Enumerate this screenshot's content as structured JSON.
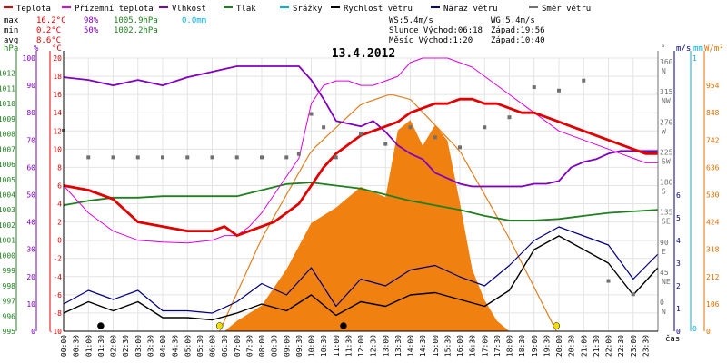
{
  "legend": [
    {
      "label": "Teplota",
      "color": "#e00000"
    },
    {
      "label": "Přízemní teplota",
      "color": "#e000e0"
    },
    {
      "label": "Vlhkost",
      "color": "#8000c0"
    },
    {
      "label": "Tlak",
      "color": "#208020"
    },
    {
      "label": "Srážky",
      "color": "#00b0e0"
    },
    {
      "label": "Rychlost větru",
      "color": "#000000"
    },
    {
      "label": "Náraz větru",
      "color": "#000080"
    },
    {
      "label": "Směr větru",
      "color": "#707070"
    }
  ],
  "stats": {
    "max": {
      "label": "max",
      "temp": "16.2°C",
      "hum": "98%",
      "press": "1005.9hPa",
      "rain": "0.0mm"
    },
    "min": {
      "label": "min",
      "temp": "0.2°C",
      "hum": "50%",
      "press": "1002.2hPa"
    },
    "avg": {
      "label": "avg",
      "temp": "8.6°C"
    }
  },
  "info": {
    "ws": "WS:5.4m/s",
    "wg": "WG:5.4m/s",
    "sun": "Slunce Východ:06:18",
    "sun_set": "Západ:19:56",
    "moon": "Měsíc Východ:1:20",
    "moon_set": "Západ:10:40"
  },
  "axis_units": {
    "hpa": "hPa",
    "pct": "%",
    "degc": "°C",
    "deg": "°",
    "ms": "m/s",
    "mm": "mm",
    "wm2": "W/m²",
    "time": "čas"
  },
  "chart_data": {
    "type": "line",
    "title": "13.4.2012",
    "x_ticks": [
      "00:00",
      "00:30",
      "01:00",
      "01:30",
      "02:00",
      "02:30",
      "03:00",
      "03:30",
      "04:00",
      "04:30",
      "05:00",
      "05:30",
      "06:00",
      "06:30",
      "07:00",
      "07:30",
      "08:00",
      "08:30",
      "09:00",
      "09:30",
      "10:00",
      "10:30",
      "11:00",
      "11:30",
      "12:00",
      "12:30",
      "13:00",
      "13:30",
      "14:00",
      "14:30",
      "15:00",
      "15:30",
      "16:00",
      "16:30",
      "17:00",
      "17:30",
      "18:00",
      "18:30",
      "19:00",
      "19:30",
      "20:00",
      "20:30",
      "21:00",
      "21:30",
      "22:00",
      "22:30",
      "23:00",
      "23:30"
    ],
    "xlim": [
      0,
      24
    ],
    "axes": {
      "hpa": {
        "range": [
          995,
          1013
        ],
        "ticks": [
          995,
          996,
          997,
          998,
          999,
          1000,
          1001,
          1002,
          1003,
          1004,
          1005,
          1006,
          1007,
          1008,
          1009,
          1010,
          1011,
          1012
        ]
      },
      "pct": {
        "range": [
          0,
          100
        ],
        "ticks": [
          0,
          10,
          20,
          30,
          40,
          50,
          60,
          70,
          80,
          90,
          100
        ]
      },
      "degc": {
        "range": [
          -10,
          20
        ],
        "ticks": [
          -10,
          -8,
          -6,
          -4,
          -2,
          0,
          2,
          4,
          6,
          8,
          10,
          12,
          14,
          16,
          18,
          20
        ]
      },
      "deg": {
        "ticks": [
          {
            "v": 0,
            "label": "0 N"
          },
          {
            "v": 45,
            "label": "45 NE"
          },
          {
            "v": 90,
            "label": "90 E"
          },
          {
            "v": 135,
            "label": "135 SE"
          },
          {
            "v": 180,
            "label": "180 S"
          },
          {
            "v": 225,
            "label": "225 SW"
          },
          {
            "v": 270,
            "label": "270 W"
          },
          {
            "v": 315,
            "label": "315 NW"
          },
          {
            "v": 360,
            "label": "360 N"
          }
        ]
      },
      "ms": {
        "ticks": [
          0,
          1,
          2,
          3,
          4,
          5,
          6
        ]
      },
      "mm": {
        "ticks": [
          0,
          1
        ]
      },
      "wm2": {
        "range": [
          0,
          1060
        ],
        "ticks": [
          0,
          106,
          212,
          318,
          424,
          530,
          636,
          742,
          848,
          954
        ]
      }
    },
    "series": [
      {
        "name": "Teplota",
        "axis": "degc",
        "x": [
          0,
          1,
          2,
          3,
          4,
          5,
          6,
          6.5,
          7,
          7.5,
          8,
          8.5,
          9,
          9.5,
          10,
          10.5,
          11,
          11.5,
          12,
          12.5,
          13,
          13.5,
          14,
          14.5,
          15,
          15.5,
          16,
          16.5,
          17,
          17.5,
          18,
          18.5,
          19,
          19.5,
          20,
          20.5,
          21,
          21.5,
          22,
          22.5,
          23,
          23.5,
          24
        ],
        "y": [
          6,
          5.5,
          4.5,
          2,
          1.5,
          1,
          1,
          1.5,
          0.5,
          1,
          1.5,
          2,
          3,
          4,
          6,
          8,
          9.5,
          10.5,
          11.5,
          12,
          12.5,
          13,
          14,
          14.5,
          15,
          15,
          15.5,
          15.5,
          15,
          15,
          14.5,
          14,
          14,
          13.5,
          13,
          12.5,
          12,
          11.5,
          11,
          10.5,
          10,
          9.5,
          9.5
        ]
      },
      {
        "name": "Přízemní teplota",
        "axis": "degc",
        "x": [
          0,
          1,
          2,
          3,
          4,
          5,
          6,
          6.5,
          7,
          7.5,
          8,
          8.5,
          9,
          9.5,
          10,
          10.5,
          11,
          11.5,
          12,
          12.5,
          13,
          13.5,
          14,
          14.5,
          15,
          15.5,
          16,
          16.5,
          17,
          17.5,
          18,
          18.5,
          19,
          19.5,
          20,
          20.5,
          21,
          21.5,
          22,
          22.5,
          23,
          23.5,
          24
        ],
        "y": [
          6,
          3,
          1,
          0,
          -0.2,
          -0.3,
          0,
          0.5,
          0.5,
          1.5,
          3,
          5,
          7,
          9,
          15,
          17,
          17.5,
          17.5,
          17,
          17,
          17.5,
          18,
          19.5,
          20,
          20,
          20,
          19.5,
          19,
          18,
          17,
          16,
          15,
          14,
          13,
          12,
          11.5,
          11,
          10.5,
          10,
          9.5,
          9,
          8.5,
          8.5
        ]
      },
      {
        "name": "Vlhkost",
        "axis": "pct",
        "x": [
          0,
          1,
          2,
          3,
          4,
          5,
          6,
          6.5,
          7,
          7.5,
          8,
          8.5,
          9,
          9.5,
          10,
          10.5,
          11,
          11.5,
          12,
          12.5,
          13,
          13.5,
          14,
          14.5,
          15,
          15.5,
          16,
          16.5,
          17,
          17.5,
          18,
          18.5,
          19,
          19.5,
          20,
          20.5,
          21,
          21.5,
          22,
          22.5,
          23,
          23.5,
          24
        ],
        "y": [
          93,
          92,
          90,
          92,
          90,
          93,
          95,
          96,
          97,
          97,
          97,
          97,
          97,
          97,
          92,
          85,
          77,
          76,
          75,
          77,
          73,
          68,
          65,
          63,
          58,
          56,
          54,
          53,
          53,
          53,
          53,
          53,
          54,
          54,
          55,
          60,
          62,
          63,
          65,
          66,
          66,
          66,
          66
        ]
      },
      {
        "name": "Tlak",
        "axis": "hpa",
        "x": [
          0,
          1,
          2,
          3,
          4,
          5,
          6,
          7,
          8,
          9,
          10,
          11,
          12,
          13,
          14,
          15,
          16,
          17,
          18,
          19,
          20,
          21,
          22,
          23,
          24
        ],
        "y": [
          1003.3,
          1003.6,
          1003.8,
          1003.8,
          1003.9,
          1003.9,
          1003.9,
          1003.9,
          1004.3,
          1004.7,
          1004.8,
          1004.6,
          1004.4,
          1004.0,
          1003.6,
          1003.3,
          1003.0,
          1002.6,
          1002.3,
          1002.3,
          1002.4,
          1002.6,
          1002.8,
          1002.9,
          1003.0
        ]
      },
      {
        "name": "Rychlost větru",
        "axis": "ms",
        "x": [
          0,
          1,
          2,
          3,
          4,
          5,
          6,
          7,
          8,
          9,
          10,
          11,
          12,
          13,
          14,
          15,
          16,
          17,
          18,
          19,
          20,
          21,
          22,
          23,
          24
        ],
        "y": [
          0.8,
          1.3,
          0.9,
          1.3,
          0.6,
          0.6,
          0.5,
          0.8,
          1.2,
          0.9,
          1.6,
          0.7,
          1.3,
          1.1,
          1.6,
          1.7,
          1.4,
          1.1,
          1.8,
          3.6,
          4.2,
          3.6,
          3.0,
          1.6,
          2.8
        ]
      },
      {
        "name": "Náraz větru",
        "axis": "ms",
        "x": [
          0,
          1,
          2,
          3,
          4,
          5,
          6,
          7,
          8,
          9,
          10,
          11,
          12,
          13,
          14,
          15,
          16,
          17,
          18,
          19,
          20,
          21,
          22,
          23,
          24
        ],
        "y": [
          1.2,
          1.8,
          1.4,
          1.8,
          0.9,
          0.9,
          0.8,
          1.3,
          2.1,
          1.6,
          2.8,
          1.1,
          2.3,
          2.0,
          2.7,
          2.9,
          2.4,
          2.0,
          2.9,
          4.0,
          4.6,
          4.2,
          3.8,
          2.3,
          3.4
        ]
      },
      {
        "name": "Směr větru",
        "axis": "deg",
        "x": [
          0,
          1,
          2,
          3,
          4,
          5,
          6,
          7,
          8,
          9,
          9.5,
          10,
          10.5,
          11,
          12,
          13,
          14,
          15,
          16,
          17,
          18,
          19,
          20,
          21,
          22,
          23
        ],
        "y": [
          265,
          225,
          225,
          225,
          225,
          225,
          225,
          225,
          225,
          225,
          230,
          290,
          270,
          225,
          260,
          245,
          270,
          255,
          240,
          270,
          285,
          330,
          325,
          340,
          40,
          20
        ]
      },
      {
        "name": "Solar",
        "axis": "wm2",
        "x": [
          6.5,
          7,
          8,
          9,
          10,
          11,
          12,
          13,
          13.5,
          14,
          14.5,
          15,
          15.5,
          16,
          16.5,
          17,
          17.5,
          18
        ],
        "y": [
          0,
          40,
          100,
          240,
          420,
          480,
          560,
          520,
          780,
          820,
          720,
          800,
          740,
          500,
          240,
          120,
          40,
          0
        ]
      },
      {
        "name": "Solar max",
        "axis": "wm2",
        "x": [
          6.3,
          8,
          10,
          12,
          13.2,
          14,
          16,
          18,
          19.9
        ],
        "y": [
          0,
          360,
          700,
          880,
          920,
          900,
          700,
          360,
          0
        ]
      }
    ],
    "markers": [
      {
        "x": 1.5,
        "color": "#000000"
      },
      {
        "x": 6.3,
        "color": "#f0e000"
      },
      {
        "x": 11.3,
        "color": "#000000"
      },
      {
        "x": 19.9,
        "color": "#f0e000"
      }
    ],
    "grid": true
  }
}
